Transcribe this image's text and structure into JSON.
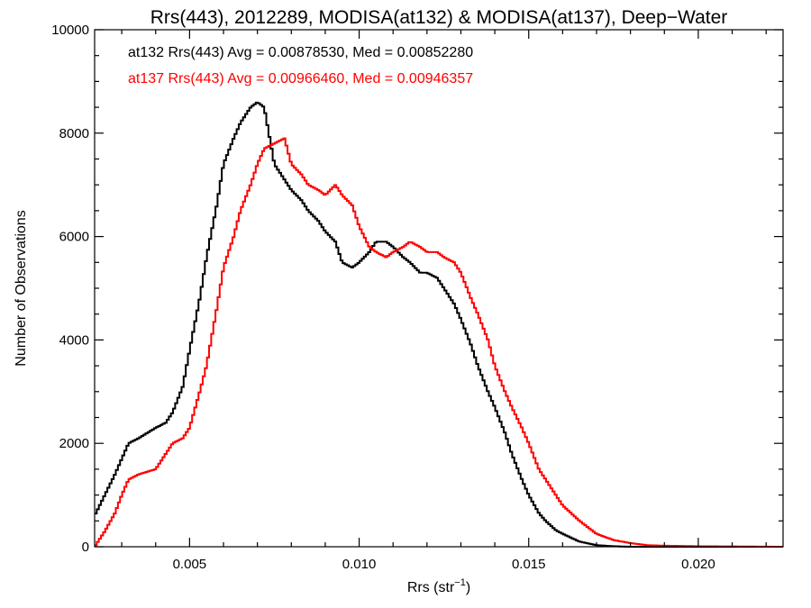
{
  "chart_data": {
    "type": "line",
    "title": "Rrs(443), 2012289, MODISA(at132) & MODISA(at137), Deep−Water",
    "xlabel": "Rrs (str",
    "xlabel_sup": "−1",
    "xlabel_close": ")",
    "ylabel": "Number of Observations",
    "xlim": [
      0.0022,
      0.0225
    ],
    "ylim": [
      0,
      10000
    ],
    "xticks": [
      0.005,
      0.01,
      0.015,
      0.02
    ],
    "xtick_labels": [
      "0.005",
      "0.010",
      "0.015",
      "0.020"
    ],
    "yticks": [
      0,
      2000,
      4000,
      6000,
      8000,
      10000
    ],
    "ytick_labels": [
      "0",
      "2000",
      "4000",
      "6000",
      "8000",
      "10000"
    ],
    "grid": false,
    "legend_position": "top-left",
    "annotations": [
      "at132 Rrs(443) Avg = 0.00878530, Med = 0.00852280",
      "at137 Rrs(443) Avg = 0.00966460, Med = 0.00946357"
    ],
    "series": [
      {
        "color": "#000000",
        "x": [
          0.0022,
          0.0025,
          0.0028,
          0.003,
          0.0032,
          0.0035,
          0.004,
          0.0043,
          0.0045,
          0.0048,
          0.005,
          0.0053,
          0.0055,
          0.0058,
          0.006,
          0.0063,
          0.0065,
          0.0068,
          0.007,
          0.0072,
          0.0075,
          0.0078,
          0.008,
          0.0083,
          0.0085,
          0.0088,
          0.009,
          0.0093,
          0.0095,
          0.0098,
          0.01,
          0.0103,
          0.0105,
          0.0108,
          0.011,
          0.0113,
          0.0115,
          0.0118,
          0.012,
          0.0123,
          0.0125,
          0.0128,
          0.013,
          0.0133,
          0.0135,
          0.0138,
          0.014,
          0.0143,
          0.0145,
          0.0148,
          0.015,
          0.0153,
          0.0155,
          0.0158,
          0.016,
          0.0165,
          0.017,
          0.0175,
          0.018,
          0.019,
          0.02,
          0.0225
        ],
        "y": [
          600,
          1000,
          1400,
          1700,
          2000,
          2100,
          2300,
          2400,
          2600,
          3100,
          3800,
          4800,
          5600,
          6600,
          7400,
          7900,
          8200,
          8500,
          8600,
          8500,
          7400,
          7100,
          6900,
          6700,
          6500,
          6300,
          6100,
          5900,
          5500,
          5400,
          5500,
          5700,
          5900,
          5900,
          5800,
          5600,
          5500,
          5300,
          5300,
          5200,
          5000,
          4700,
          4400,
          3900,
          3500,
          3000,
          2700,
          2200,
          1800,
          1300,
          1000,
          650,
          500,
          320,
          250,
          100,
          30,
          10,
          0,
          0,
          0,
          0
        ]
      },
      {
        "color": "#ff0000",
        "x": [
          0.0022,
          0.0025,
          0.0028,
          0.003,
          0.0032,
          0.0035,
          0.004,
          0.0043,
          0.0045,
          0.0048,
          0.005,
          0.0053,
          0.0055,
          0.0058,
          0.006,
          0.0063,
          0.0065,
          0.0068,
          0.007,
          0.0072,
          0.0075,
          0.0078,
          0.008,
          0.0083,
          0.0085,
          0.0088,
          0.009,
          0.0093,
          0.0095,
          0.0098,
          0.01,
          0.0103,
          0.0105,
          0.0108,
          0.011,
          0.0113,
          0.0115,
          0.0118,
          0.012,
          0.0123,
          0.0125,
          0.0128,
          0.013,
          0.0133,
          0.0135,
          0.0138,
          0.014,
          0.0143,
          0.0145,
          0.0148,
          0.015,
          0.0153,
          0.0155,
          0.0158,
          0.016,
          0.0165,
          0.017,
          0.0175,
          0.018,
          0.0185,
          0.019,
          0.02,
          0.0225
        ],
        "y": [
          0,
          300,
          650,
          1000,
          1300,
          1400,
          1500,
          1800,
          2000,
          2100,
          2300,
          3000,
          3500,
          4600,
          5400,
          6000,
          6500,
          7000,
          7400,
          7700,
          7800,
          7900,
          7400,
          7200,
          7000,
          6900,
          6800,
          7000,
          6800,
          6600,
          6200,
          5800,
          5700,
          5600,
          5700,
          5800,
          5900,
          5800,
          5700,
          5700,
          5600,
          5500,
          5300,
          4800,
          4500,
          4000,
          3500,
          3000,
          2700,
          2300,
          2000,
          1500,
          1300,
          1000,
          800,
          500,
          250,
          130,
          70,
          30,
          20,
          10,
          0
        ]
      }
    ]
  }
}
